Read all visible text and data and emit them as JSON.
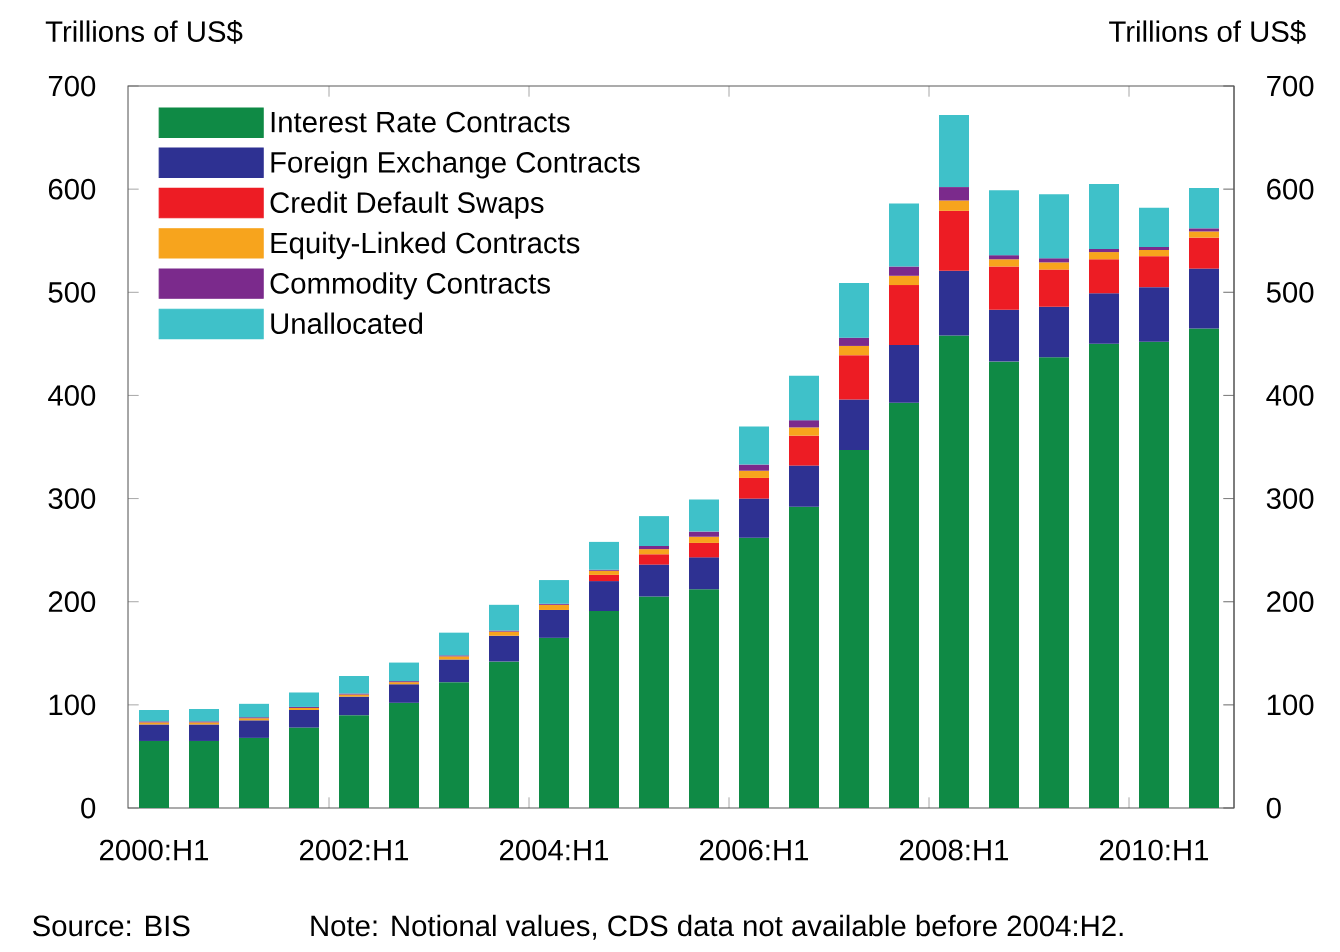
{
  "chart_data": {
    "type": "bar",
    "stacked": true,
    "categories": [
      "2000:H1",
      null,
      null,
      null,
      "2002:H1",
      null,
      null,
      null,
      "2004:H1",
      null,
      null,
      null,
      "2006:H1",
      null,
      null,
      null,
      "2008:H1",
      null,
      null,
      null,
      "2010:H1",
      null
    ],
    "series": [
      {
        "name": "Interest Rate Contracts",
        "color": "#0f8a45",
        "values": [
          65,
          65,
          68,
          78,
          90,
          102,
          122,
          142,
          165,
          191,
          205,
          212,
          262,
          292,
          347,
          393,
          458,
          433,
          437,
          450,
          452,
          465
        ]
      },
      {
        "name": "Foreign Exchange Contracts",
        "color": "#2e3192",
        "values": [
          16,
          16,
          17,
          17,
          18,
          18,
          22,
          25,
          27,
          29,
          31,
          31,
          38,
          40,
          49,
          56,
          63,
          50,
          49,
          49,
          53,
          58
        ]
      },
      {
        "name": "Credit Default Swaps",
        "color": "#ed1c24",
        "values": [
          null,
          null,
          null,
          null,
          null,
          null,
          null,
          null,
          null,
          6,
          10,
          14,
          20,
          29,
          43,
          58,
          58,
          42,
          36,
          33,
          30,
          30
        ]
      },
      {
        "name": "Equity-Linked Contracts",
        "color": "#f7a41d",
        "values": [
          2,
          2,
          2,
          2,
          2,
          2,
          3,
          4,
          5,
          4,
          5,
          6,
          7,
          8,
          9,
          9,
          10,
          7,
          7,
          7,
          6,
          6
        ]
      },
      {
        "name": "Commodity Contracts",
        "color": "#7b2a8c",
        "values": [
          1,
          1,
          1,
          1,
          1,
          1,
          1,
          1,
          1,
          1,
          3,
          5,
          6,
          7,
          8,
          9,
          13,
          4,
          4,
          3,
          3,
          3
        ]
      },
      {
        "name": "Unallocated",
        "color": "#3fc1c9",
        "values": [
          11,
          12,
          13,
          14,
          17,
          18,
          22,
          25,
          23,
          27,
          29,
          31,
          37,
          43,
          53,
          61,
          70,
          63,
          62,
          63,
          38,
          39
        ]
      }
    ],
    "ylabel": "Trillions of US$",
    "y2label": "Trillions of US$",
    "ylim": [
      0,
      700
    ],
    "yticks": [
      0,
      100,
      200,
      300,
      400,
      500,
      600,
      700
    ],
    "y2lim": [
      0,
      700
    ],
    "y2ticks": [
      0,
      100,
      200,
      300,
      400,
      500,
      600,
      700
    ],
    "legend": "top left",
    "annotations": [
      "Source: BIS",
      "Note: Notional values, CDS data not available before 2004:H2."
    ]
  }
}
